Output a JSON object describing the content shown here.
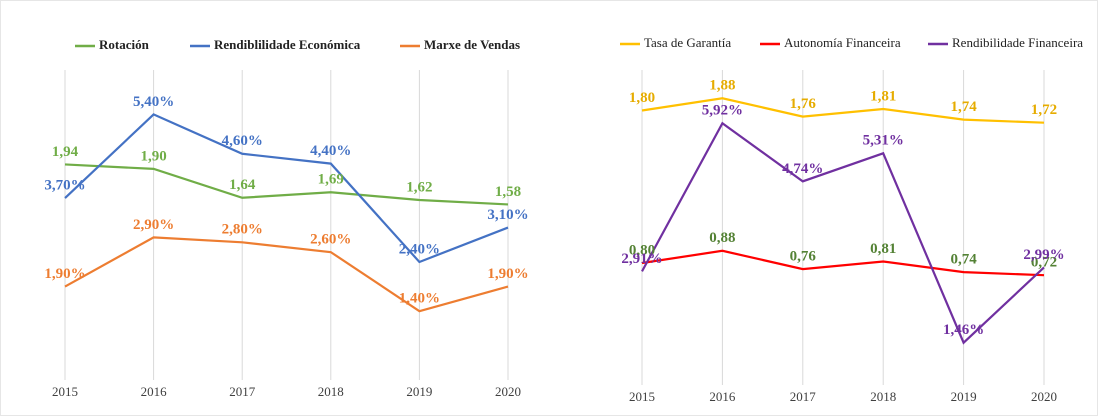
{
  "chart_data": [
    {
      "type": "line",
      "categories": [
        "2015",
        "2016",
        "2017",
        "2018",
        "2019",
        "2020"
      ],
      "ylim": [
        0,
        6.1
      ],
      "y2lim": [
        0,
        2.7
      ],
      "grid": true,
      "legend": "top",
      "series": [
        {
          "name": "Rotación",
          "color": "#70ad47",
          "label_color": "#70ad47",
          "axis": "y2",
          "values": [
            1.94,
            1.9,
            1.64,
            1.69,
            1.62,
            1.58
          ],
          "value_labels": [
            "1,94",
            "1,90",
            "1,64",
            "1,69",
            "1,62",
            "1,58"
          ]
        },
        {
          "name": "Rendiblilidade Económica",
          "color": "#4472c4",
          "label_color": "#4472c4",
          "values": [
            3.7,
            5.4,
            4.6,
            4.4,
            2.4,
            3.1
          ],
          "value_labels": [
            "3,70%",
            "5,40%",
            "4,60%",
            "4,40%",
            "2,40%",
            "3,10%"
          ]
        },
        {
          "name": "Marxe de Vendas",
          "color": "#ed7d31",
          "label_color": "#ed7d31",
          "values": [
            1.9,
            2.9,
            2.8,
            2.6,
            1.4,
            1.9
          ],
          "value_labels": [
            "1,90%",
            "2,90%",
            "2,80%",
            "2,60%",
            "1,40%",
            "1,90%"
          ]
        }
      ]
    },
    {
      "type": "line",
      "categories": [
        "2015",
        "2016",
        "2017",
        "2018",
        "2019",
        "2020"
      ],
      "ylim": [
        0,
        2
      ],
      "y2lim": [
        0.6,
        6.8
      ],
      "grid": true,
      "legend": "top",
      "series": [
        {
          "name": "Tasa de Garantía",
          "color": "#ffc000",
          "label_color": "#e6ac00",
          "values": [
            1.8,
            1.88,
            1.76,
            1.81,
            1.74,
            1.72
          ],
          "value_labels": [
            "1,80",
            "1,88",
            "1,76",
            "1,81",
            "1,74",
            "1,72"
          ]
        },
        {
          "name": "Autonomía Financeira",
          "color": "#ff0000",
          "label_color": "#548235",
          "values": [
            0.8,
            0.88,
            0.76,
            0.81,
            0.74,
            0.72
          ],
          "value_labels": [
            "0,80",
            "0,88",
            "0,76",
            "0,81",
            "0,74",
            "0,72"
          ]
        },
        {
          "name": "Rendibilidade Financeira",
          "color": "#7030a0",
          "label_color": "#7030a0",
          "axis": "y2",
          "values": [
            2.91,
            5.92,
            4.74,
            5.31,
            1.46,
            2.99
          ],
          "value_labels": [
            "2,91%",
            "5,92%",
            "4,74%",
            "5,31%",
            "1,46%",
            "2,99%"
          ]
        }
      ]
    }
  ]
}
